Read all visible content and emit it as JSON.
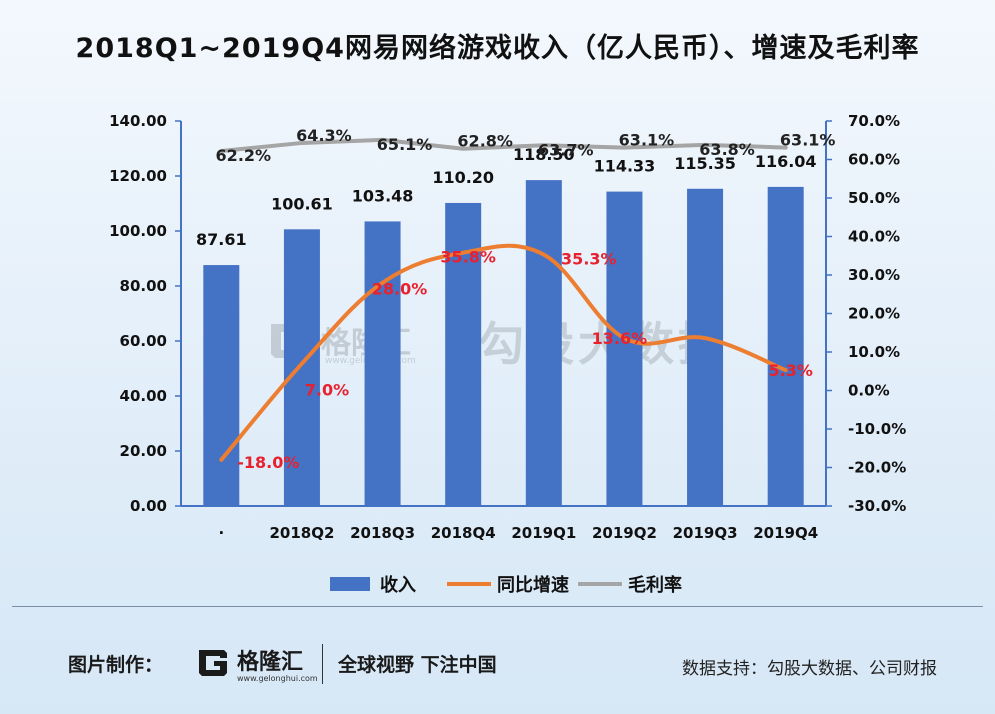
{
  "title": "2018Q1~2019Q4网易网络游戏收入（亿人民币）、增速及毛利率",
  "watermark": {
    "brand": "格隆汇",
    "url": "www.gelonghui.com",
    "text": "勾股大数据"
  },
  "footer": {
    "made_by_label": "图片制作：",
    "logo_name": "格隆汇",
    "logo_url": "www.gelonghui.com",
    "slogan": "全球视野 下注中国",
    "source": "数据支持：勾股大数据、公司财报"
  },
  "colors": {
    "bar": "#4472c4",
    "growth": "#ed7d31",
    "margin": "#a5a5a5",
    "growth_label": "#e8212e",
    "axis": "#4472c4"
  },
  "chart_data": {
    "type": "bar",
    "categories": [
      "·",
      "2018Q2",
      "2018Q3",
      "2018Q4",
      "2019Q1",
      "2019Q2",
      "2019Q3",
      "2019Q4"
    ],
    "series": [
      {
        "name": "收入",
        "type": "bar",
        "axis": "left",
        "values": [
          87.61,
          100.61,
          103.48,
          110.2,
          118.5,
          114.33,
          115.35,
          116.04
        ],
        "labels": [
          "87.61",
          "100.61",
          "103.48",
          "110.20",
          "118.50",
          "114.33",
          "115.35",
          "116.04"
        ]
      },
      {
        "name": "同比增速",
        "type": "line",
        "axis": "right",
        "values": [
          -18.0,
          7.0,
          28.0,
          35.8,
          35.3,
          13.6,
          13.6,
          5.3
        ],
        "labels": [
          "-18.0%",
          "7.0%",
          "28.0%",
          "35.8%",
          "35.3%",
          "13.6%",
          "",
          "5.3%"
        ]
      },
      {
        "name": "毛利率",
        "type": "line",
        "axis": "right",
        "values": [
          62.2,
          64.3,
          65.1,
          62.8,
          63.7,
          63.1,
          63.8,
          63.1
        ],
        "labels": [
          "62.2%",
          "64.3%",
          "65.1%",
          "62.8%",
          "63.7%",
          "63.1%",
          "63.8%",
          "63.1%"
        ]
      }
    ],
    "y_left": {
      "min": 0,
      "max": 140,
      "step": 20,
      "ticks": [
        "0.00",
        "20.00",
        "40.00",
        "60.00",
        "80.00",
        "100.00",
        "120.00",
        "140.00"
      ]
    },
    "y_right": {
      "min": -30,
      "max": 70,
      "step": 10,
      "ticks": [
        "-30.0%",
        "-20.0%",
        "-10.0%",
        "0.0%",
        "10.0%",
        "20.0%",
        "30.0%",
        "40.0%",
        "50.0%",
        "60.0%",
        "70.0%"
      ]
    },
    "legend": [
      "收入",
      "同比增速",
      "毛利率"
    ],
    "legend_position": "bottom",
    "grid": false
  }
}
